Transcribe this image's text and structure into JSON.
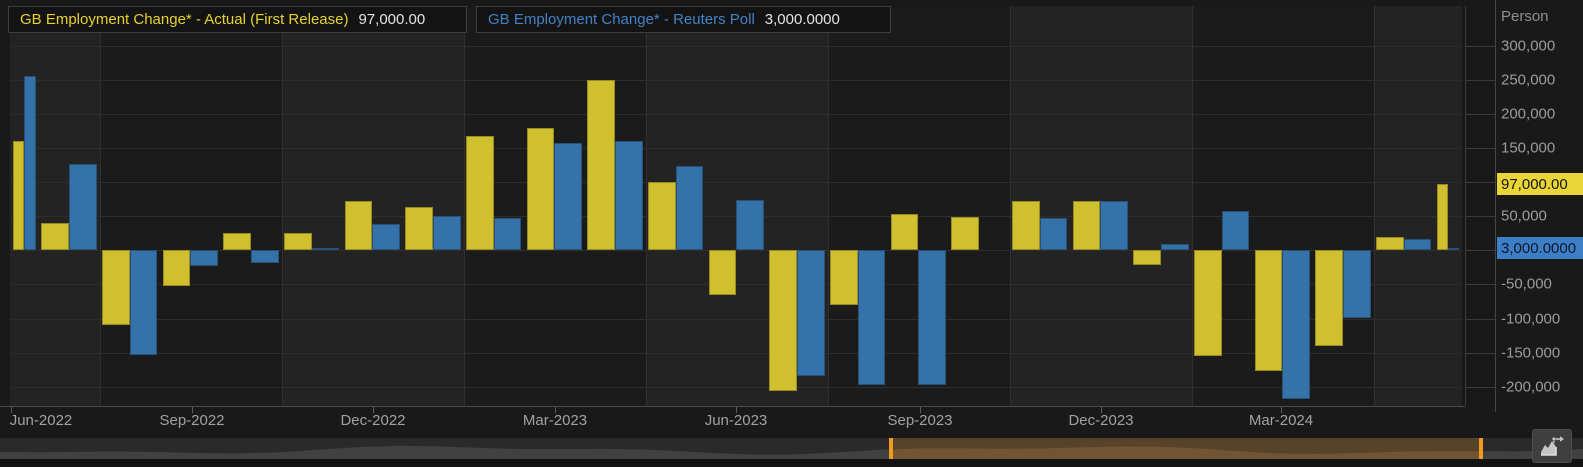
{
  "legend": {
    "series1": {
      "label": "GB Employment Change* - Actual (First Release)",
      "value": "97,000.00"
    },
    "series2": {
      "label": "GB Employment Change* - Reuters Poll",
      "value": "3,000.0000"
    }
  },
  "y_axis": {
    "unit": "Person",
    "ticks": [
      {
        "label": "300,000",
        "value": 300000
      },
      {
        "label": "250,000",
        "value": 250000
      },
      {
        "label": "200,000",
        "value": 200000
      },
      {
        "label": "150,000",
        "value": 150000
      },
      {
        "label": "50,000",
        "value": 50000
      },
      {
        "label": "-50,000",
        "value": -50000
      },
      {
        "label": "-100,000",
        "value": -100000
      },
      {
        "label": "-150,000",
        "value": -150000
      },
      {
        "label": "-200,000",
        "value": -200000
      }
    ],
    "badge_actual": {
      "label": "97,000.00",
      "value": 97000
    },
    "badge_poll": {
      "label": "3,000.0000",
      "value": 3000
    }
  },
  "x_axis": {
    "tick_labels": [
      "Jun-2022",
      "Sep-2022",
      "Dec-2022",
      "Mar-2023",
      "Jun-2023",
      "Sep-2023",
      "Dec-2023",
      "Mar-2024"
    ]
  },
  "icons": {
    "popout_button": "open-in-new-chart"
  },
  "colors": {
    "actual_bar": "#d0c02f",
    "poll_bar": "#3572aa",
    "badge_actual_bg": "#e9d636",
    "badge_poll_bg": "#3d7fc7",
    "legend_actual_text": "#e5d231",
    "legend_poll_text": "#4283c6",
    "navigator_selection": "#57422a",
    "navigator_handle": "#f09b1e"
  },
  "chart_data": {
    "type": "bar",
    "unit": "Person",
    "categories": [
      "Jun-2022",
      "Jul-2022",
      "Aug-2022",
      "Sep-2022",
      "Oct-2022",
      "Nov-2022",
      "Dec-2022",
      "Jan-2023",
      "Feb-2023",
      "Mar-2023",
      "Apr-2023",
      "May-2023",
      "Jun-2023",
      "Jul-2023",
      "Aug-2023",
      "Sep-2023",
      "Oct-2023",
      "Nov-2023",
      "Dec-2023",
      "Jan-2024",
      "Feb-2024",
      "Mar-2024",
      "Apr-2024",
      "May-2024",
      "Jun-2024"
    ],
    "series": [
      {
        "name": "GB Employment Change* - Actual (First Release)",
        "color": "#d0c02f",
        "values": [
          160000,
          40000,
          -110000,
          -53000,
          26000,
          26000,
          73000,
          64000,
          167000,
          179000,
          250000,
          100000,
          -65000,
          -206000,
          -81000,
          53000,
          49000,
          72000,
          72000,
          -21000,
          -155000,
          -177000,
          -140000,
          19000,
          97000
        ]
      },
      {
        "name": "GB Employment Change* - Reuters Poll",
        "color": "#3572aa",
        "values": [
          255000,
          127000,
          -153000,
          -23000,
          -18000,
          4000,
          39000,
          51000,
          48000,
          158000,
          160000,
          123000,
          74000,
          -184000,
          -197000,
          -197000,
          null,
          48000,
          72000,
          9000,
          57000,
          -218000,
          -100000,
          17000,
          3000
        ]
      }
    ],
    "latest": {
      "actual": 97000,
      "poll": 3000
    },
    "x_tick_labels": [
      "Jun-2022",
      "Sep-2022",
      "Dec-2022",
      "Mar-2023",
      "Jun-2023",
      "Sep-2023",
      "Dec-2023",
      "Mar-2024"
    ],
    "y_gridline_values": [
      300000,
      250000,
      200000,
      150000,
      100000,
      50000,
      0,
      -50000,
      -100000,
      -150000,
      -200000
    ],
    "ylim": [
      -228000,
      358000
    ],
    "grid": true,
    "legend_position": "top-left"
  }
}
